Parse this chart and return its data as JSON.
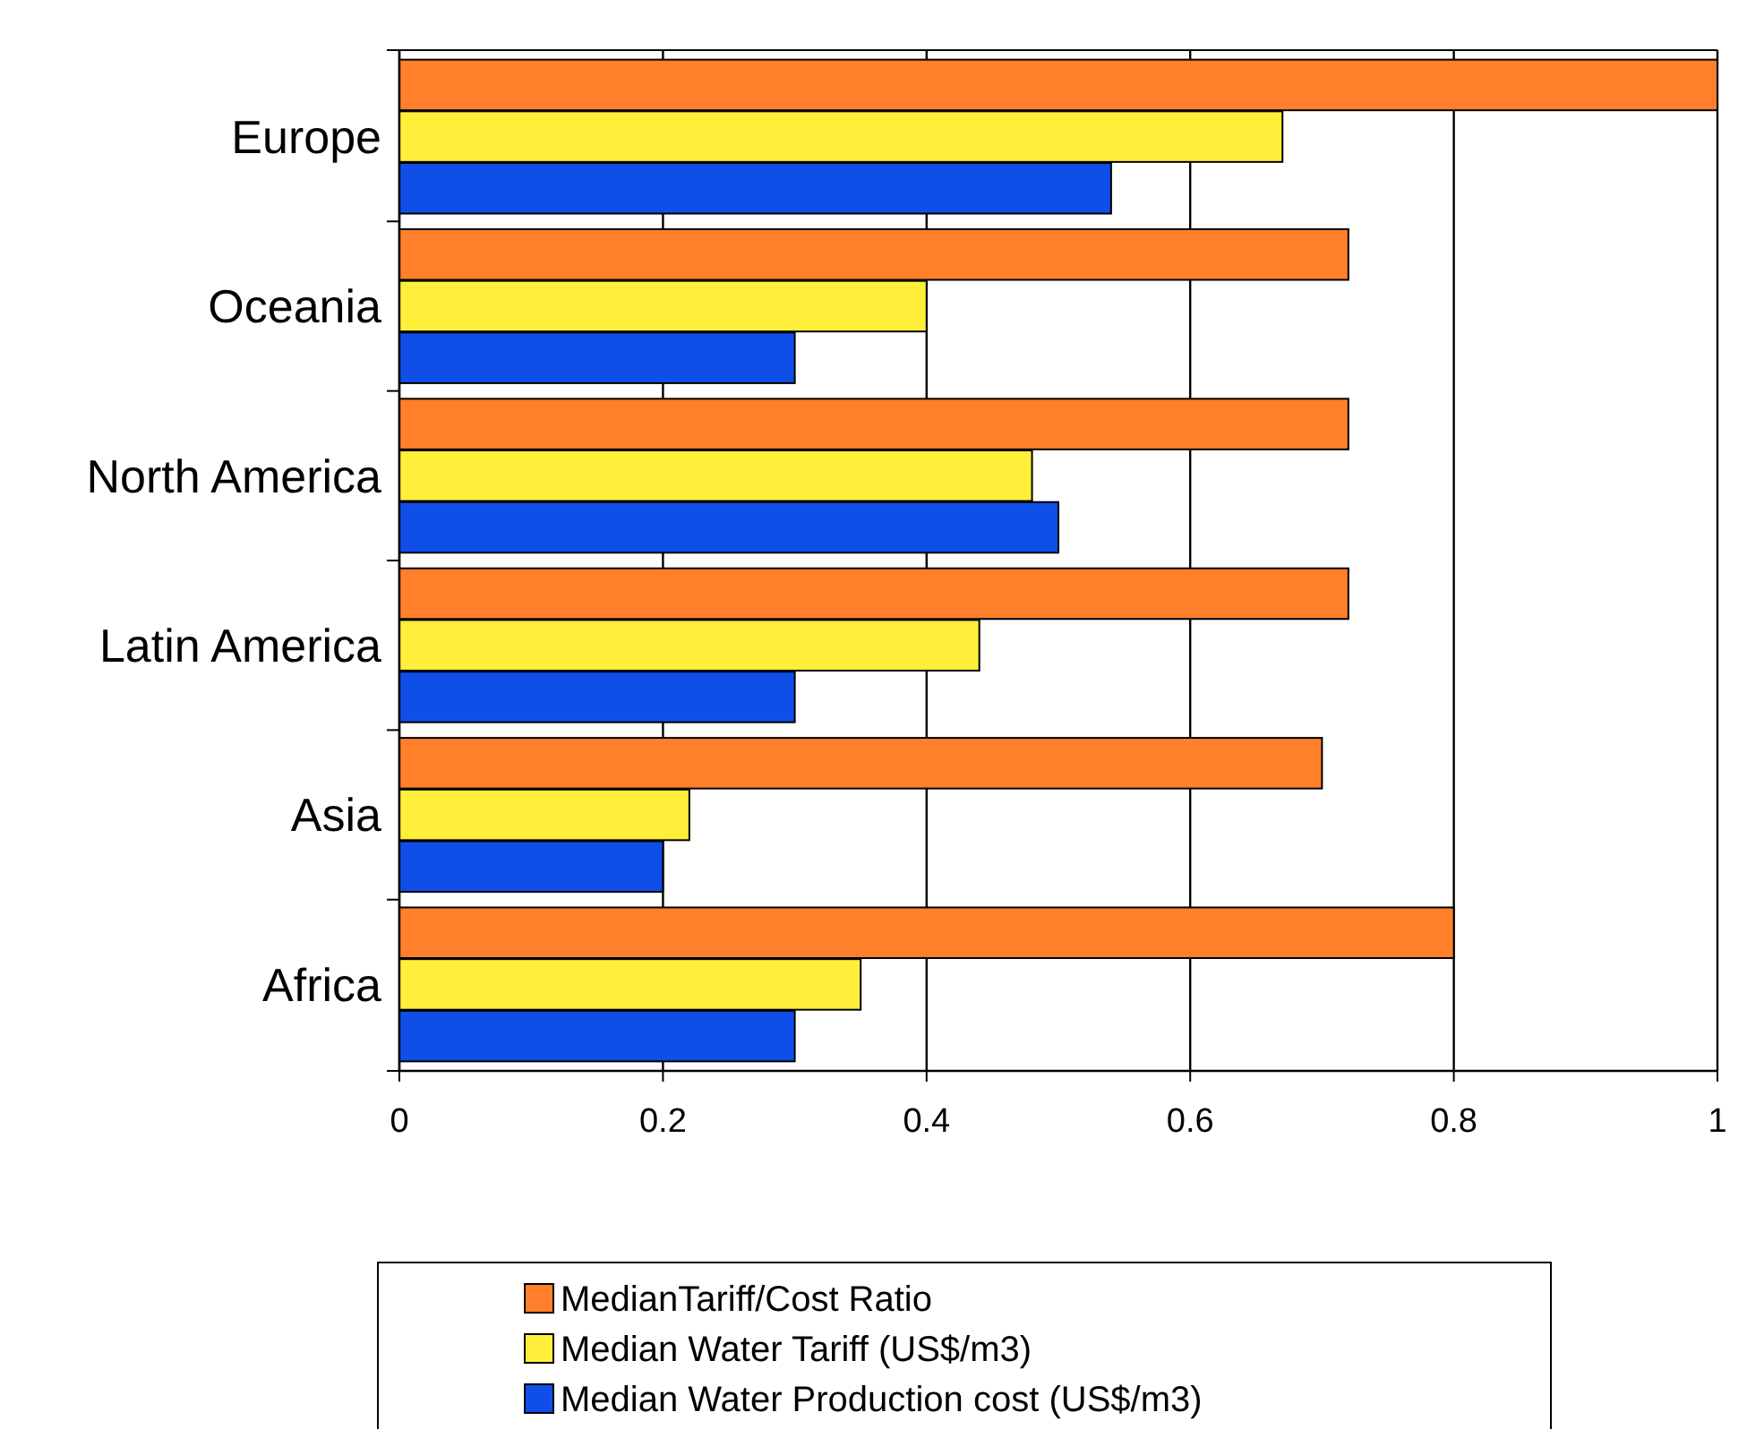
{
  "chart_data": {
    "type": "bar",
    "orientation": "horizontal",
    "categories": [
      "Europe",
      "Oceania",
      "North America",
      "Latin America",
      "Asia",
      "Africa"
    ],
    "series": [
      {
        "name": "MedianTariff/Cost Ratio",
        "color": "#ff7f2a",
        "values": [
          1.0,
          0.72,
          0.72,
          0.72,
          0.7,
          0.8
        ]
      },
      {
        "name": "Median Water Tariff (US$/m3)",
        "color": "#ffef3a",
        "values": [
          0.67,
          0.4,
          0.48,
          0.44,
          0.22,
          0.35
        ]
      },
      {
        "name": "Median Water Production cost (US$/m3)",
        "color": "#0f4fe8",
        "values": [
          0.54,
          0.3,
          0.5,
          0.3,
          0.2,
          0.3
        ]
      }
    ],
    "xlim": [
      0,
      1
    ],
    "xticks": [
      0,
      0.2,
      0.4,
      0.6,
      0.8,
      1
    ],
    "grid": "x",
    "legend": "bottom"
  }
}
